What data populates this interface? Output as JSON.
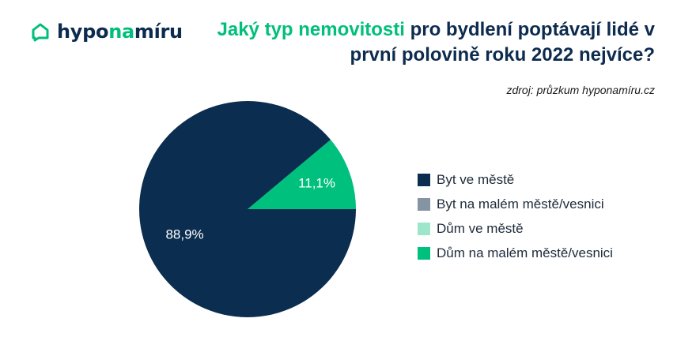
{
  "brand": {
    "logo_part1": "hypo",
    "logo_part2": "na",
    "logo_part3": "míru",
    "color_dark": "#0d2b4e",
    "color_green": "#00bf7a"
  },
  "chart_data": {
    "type": "pie",
    "title_highlight": "Jaký typ nemovitosti",
    "title_rest": " pro bydlení poptávají lidé v první polovině roku 2022 nejvíce?",
    "source": "zdroj: průzkum hyponamíru.cz",
    "legend_placement": "right",
    "slices": [
      {
        "label": "Byt ve městě",
        "value": 88.9,
        "value_label": "88,9%",
        "color": "#0b2d4f",
        "label_color": "#ffffff"
      },
      {
        "label": "Byt na malém městě/vesnici",
        "value": 0,
        "value_label": "",
        "color": "#8494a3",
        "label_color": "#ffffff"
      },
      {
        "label": "Dům ve městě",
        "value": 0,
        "value_label": "",
        "color": "#9ee6cb",
        "label_color": "#ffffff"
      },
      {
        "label": "Dům na malém městě/vesnici",
        "value": 11.1,
        "value_label": "11,1%",
        "color": "#00c07e",
        "label_color": "#ffffff"
      }
    ]
  }
}
